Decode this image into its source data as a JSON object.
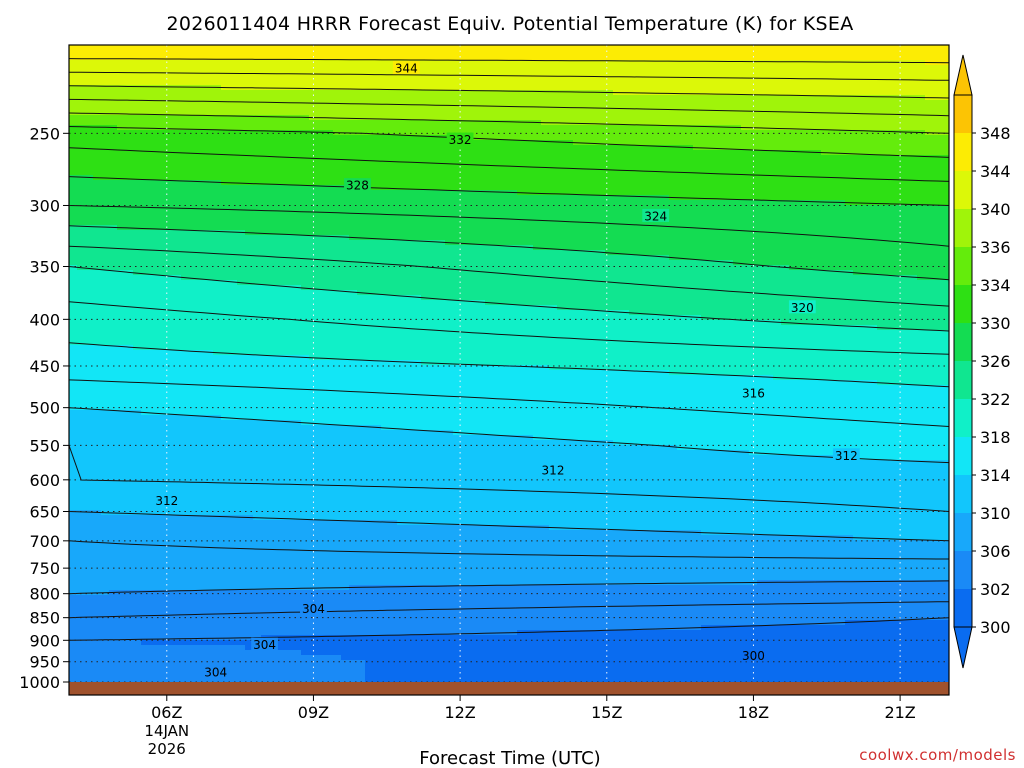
{
  "chart_data": {
    "type": "heatmap",
    "title": "2026011404 HRRR Forecast Equiv. Potential Temperature (K) for KSEA",
    "xlabel": "Forecast Time (UTC)",
    "ylabel": "",
    "x_ticks": [
      {
        "label": "06Z",
        "sub1": "14JAN",
        "sub2": "2026",
        "hour": 6
      },
      {
        "label": "09Z",
        "hour": 9
      },
      {
        "label": "12Z",
        "hour": 12
      },
      {
        "label": "15Z",
        "hour": 15
      },
      {
        "label": "18Z",
        "hour": 18
      },
      {
        "label": "21Z",
        "hour": 21
      }
    ],
    "xlim": [
      4,
      22
    ],
    "y_ticks": [
      250,
      300,
      350,
      400,
      450,
      500,
      550,
      600,
      650,
      700,
      750,
      800,
      850,
      900,
      950,
      1000
    ],
    "y_tick_labels": [
      "250",
      "300",
      "350",
      "400",
      "450",
      "500",
      "550",
      "600",
      "650",
      "700",
      "750",
      "800",
      "850",
      "900",
      "950",
      "1000"
    ],
    "ylim": [
      200,
      1015
    ],
    "y_scale": "log-pressure",
    "units": "K",
    "colorbar": {
      "levels": [
        300,
        302,
        306,
        310,
        314,
        318,
        322,
        326,
        330,
        334,
        336,
        340,
        344,
        348
      ],
      "labels": [
        "300",
        "302",
        "306",
        "310",
        "314",
        "318",
        "322",
        "326",
        "330",
        "334",
        "336",
        "340",
        "344",
        "348"
      ],
      "colors": [
        "#0a6cf0",
        "#1a8af6",
        "#18a8fa",
        "#12c6fc",
        "#12e6f6",
        "#10f0c8",
        "#10e690",
        "#14dc52",
        "#2ee014",
        "#64ec0c",
        "#a0f40a",
        "#dcf808",
        "#fcec04",
        "#fcc404"
      ],
      "extend": "both"
    },
    "contour_labels": [
      {
        "text": "344",
        "hour": 10.9,
        "p": 212
      },
      {
        "text": "332",
        "hour": 12.0,
        "p": 254
      },
      {
        "text": "328",
        "hour": 9.9,
        "p": 285
      },
      {
        "text": "324",
        "hour": 16.0,
        "p": 308
      },
      {
        "text": "320",
        "hour": 19.0,
        "p": 388
      },
      {
        "text": "316",
        "hour": 18.0,
        "p": 482
      },
      {
        "text": "312",
        "hour": 13.9,
        "p": 585
      },
      {
        "text": "312",
        "hour": 19.9,
        "p": 564
      },
      {
        "text": "312",
        "hour": 6.0,
        "p": 632
      },
      {
        "text": "304",
        "hour": 9.0,
        "p": 830
      },
      {
        "text": "304",
        "hour": 8.0,
        "p": 910
      },
      {
        "text": "304",
        "hour": 7.0,
        "p": 975
      },
      {
        "text": "300",
        "hour": 18.0,
        "p": 935
      }
    ],
    "field_profile": {
      "p": [
        200,
        250,
        300,
        350,
        400,
        450,
        500,
        550,
        600,
        650,
        700,
        750,
        800,
        850,
        900,
        950,
        1000
      ],
      "theta_e_start": [
        346,
        333,
        328,
        322,
        319,
        317,
        314,
        312,
        312,
        310,
        308,
        307,
        306,
        304,
        302,
        303,
        303
      ],
      "theta_e_end": [
        346,
        336,
        330,
        327,
        323,
        319,
        317,
        315,
        313,
        312,
        310,
        307,
        305,
        302,
        301,
        300,
        300
      ]
    },
    "grid": true,
    "surface": "brown band below 1000 hPa"
  },
  "credit": "coolwx.com/models"
}
